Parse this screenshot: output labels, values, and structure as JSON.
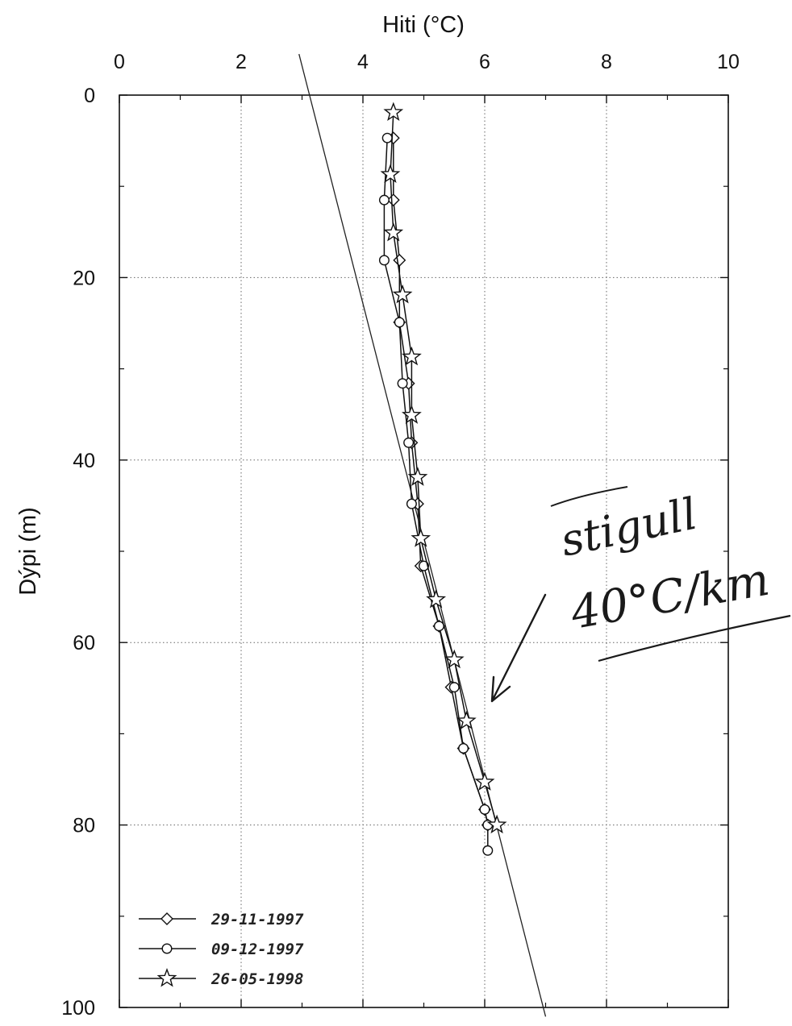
{
  "chart_data": {
    "type": "line",
    "xlabel": "Hiti (°C)",
    "ylabel": "Dýpi (m)",
    "xlim": [
      0,
      10
    ],
    "ylim": [
      0,
      100
    ],
    "x_ticks": [
      "0",
      "2",
      "4",
      "6",
      "8",
      "10"
    ],
    "y_ticks": [
      "0",
      "20",
      "40",
      "60",
      "80",
      "100"
    ],
    "y_inverted": true,
    "x_axis_position": "top",
    "grid": "dotted",
    "legend_position": "bottom-left",
    "series": [
      {
        "name": "29-11-1997",
        "marker": "diamond",
        "points": [
          [
            4.5,
            4.7
          ],
          [
            4.5,
            11.5
          ],
          [
            4.6,
            18.1
          ],
          [
            4.6,
            24.9
          ],
          [
            4.75,
            31.6
          ],
          [
            4.8,
            38.1
          ],
          [
            4.9,
            44.8
          ],
          [
            4.95,
            51.6
          ],
          [
            5.25,
            58.2
          ],
          [
            5.45,
            64.9
          ],
          [
            5.65,
            71.6
          ],
          [
            6.0,
            78.3
          ],
          [
            6.05,
            80.0
          ]
        ]
      },
      {
        "name": "09-12-1997",
        "marker": "circle",
        "points": [
          [
            4.4,
            4.7
          ],
          [
            4.35,
            11.5
          ],
          [
            4.35,
            18.1
          ],
          [
            4.6,
            24.9
          ],
          [
            4.65,
            31.6
          ],
          [
            4.75,
            38.1
          ],
          [
            4.8,
            44.8
          ],
          [
            5.0,
            51.6
          ],
          [
            5.25,
            58.2
          ],
          [
            5.5,
            64.9
          ],
          [
            5.65,
            71.6
          ],
          [
            6.0,
            78.3
          ],
          [
            6.05,
            80.0
          ],
          [
            6.05,
            82.8
          ]
        ]
      },
      {
        "name": "26-05-1998",
        "marker": "star",
        "points": [
          [
            4.5,
            1.9
          ],
          [
            4.45,
            8.7
          ],
          [
            4.5,
            15.1
          ],
          [
            4.65,
            21.9
          ],
          [
            4.8,
            28.7
          ],
          [
            4.8,
            35.1
          ],
          [
            4.9,
            41.9
          ],
          [
            4.95,
            48.6
          ],
          [
            5.2,
            55.3
          ],
          [
            5.5,
            61.9
          ],
          [
            5.7,
            68.6
          ],
          [
            6.0,
            75.3
          ],
          [
            6.2,
            80.0
          ]
        ]
      }
    ],
    "reference_line": {
      "points": [
        [
          2.95,
          -4.5
        ],
        [
          7.0,
          101.0
        ]
      ]
    },
    "annotations": {
      "handwritten_lines": [
        "stigull",
        "40°C/km"
      ]
    }
  },
  "colors": {
    "ink": "#111111",
    "grid": "#666666",
    "marker_fill": "#ffffff"
  }
}
